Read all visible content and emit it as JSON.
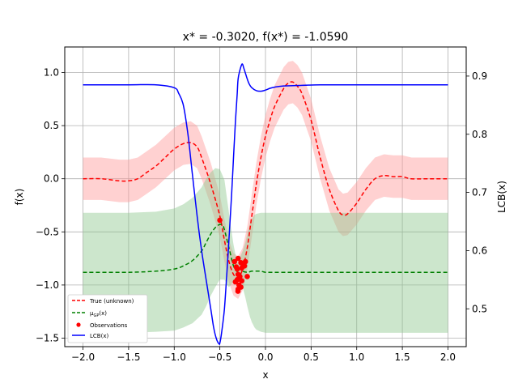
{
  "chart_data": {
    "type": "line",
    "title": "x* = -0.3020, f(x*) = -1.0590",
    "xlabel": "x",
    "ylabel": "f(x)",
    "y2label": "LCB(x)",
    "xlim": [
      -2.2,
      2.2
    ],
    "ylim": [
      -1.58,
      1.24
    ],
    "y2lim": [
      0.435,
      0.95
    ],
    "xticks": [
      "−2.0",
      "−1.5",
      "−1.0",
      "−0.5",
      "0.0",
      "0.5",
      "1.0",
      "1.5",
      "2.0"
    ],
    "yticks": [
      "1.0",
      "0.5",
      "0.0",
      "−0.5",
      "−1.0",
      "−1.5"
    ],
    "y2ticks": [
      "0.9",
      "0.8",
      "0.7",
      "0.6",
      "0.5"
    ],
    "grid": true,
    "legend_position": "lower-left",
    "colors": {
      "true": "#ff0000",
      "true_band": "#ff9999",
      "gp": "#008000",
      "gp_band": "#8fc88f",
      "observations": "#ff0000",
      "lcb": "#0000ff"
    },
    "legend": [
      {
        "label": "True (unknown)",
        "style": "dashed",
        "color": "#ff0000"
      },
      {
        "label": "μ_GP(x)",
        "style": "dashed",
        "color": "#008000"
      },
      {
        "label": "Observations",
        "style": "marker",
        "color": "#ff0000"
      },
      {
        "label": "LCB(x)",
        "style": "solid",
        "color": "#0000ff"
      }
    ],
    "series": [
      {
        "name": "True (unknown)",
        "x": [
          -2.0,
          -1.8,
          -1.6,
          -1.5,
          -1.4,
          -1.3,
          -1.2,
          -1.1,
          -1.0,
          -0.9,
          -0.82,
          -0.75,
          -0.7,
          -0.6,
          -0.5,
          -0.45,
          -0.4,
          -0.35,
          -0.3,
          -0.25,
          -0.2,
          -0.15,
          -0.1,
          -0.05,
          0.0,
          0.05,
          0.1,
          0.2,
          0.25,
          0.3,
          0.35,
          0.4,
          0.5,
          0.6,
          0.7,
          0.8,
          0.85,
          0.9,
          1.0,
          1.1,
          1.2,
          1.3,
          1.4,
          1.5,
          1.6,
          1.8,
          2.0
        ],
        "y": [
          0.0,
          0.0,
          -0.02,
          -0.02,
          0.0,
          0.06,
          0.12,
          0.2,
          0.28,
          0.33,
          0.34,
          0.3,
          0.2,
          -0.05,
          -0.35,
          -0.58,
          -0.78,
          -0.9,
          -0.93,
          -0.85,
          -0.65,
          -0.35,
          -0.05,
          0.2,
          0.4,
          0.55,
          0.68,
          0.85,
          0.9,
          0.91,
          0.87,
          0.8,
          0.55,
          0.2,
          -0.1,
          -0.3,
          -0.34,
          -0.33,
          -0.23,
          -0.1,
          0.0,
          0.03,
          0.02,
          0.02,
          0.0,
          0.0,
          0.0
        ]
      },
      {
        "name": "μ_GP(x)",
        "x": [
          -2.0,
          -1.5,
          -1.2,
          -1.0,
          -0.9,
          -0.8,
          -0.7,
          -0.65,
          -0.6,
          -0.55,
          -0.5,
          -0.47,
          -0.45,
          -0.4,
          -0.35,
          -0.3,
          -0.28,
          -0.25,
          -0.2,
          -0.15,
          -0.1,
          -0.05,
          0.0,
          0.1,
          0.5,
          1.0,
          1.5,
          2.0
        ],
        "y": [
          -0.88,
          -0.88,
          -0.87,
          -0.85,
          -0.82,
          -0.77,
          -0.68,
          -0.6,
          -0.52,
          -0.46,
          -0.43,
          -0.44,
          -0.48,
          -0.65,
          -0.82,
          -0.88,
          -0.84,
          -0.87,
          -0.88,
          -0.87,
          -0.87,
          -0.87,
          -0.88,
          -0.88,
          -0.88,
          -0.88,
          -0.88,
          -0.88
        ]
      },
      {
        "name": "LCB(x)",
        "axis": "right",
        "x": [
          -2.0,
          -1.5,
          -1.2,
          -1.0,
          -0.95,
          -0.9,
          -0.85,
          -0.8,
          -0.75,
          -0.7,
          -0.65,
          -0.6,
          -0.57,
          -0.55,
          -0.53,
          -0.51,
          -0.5,
          -0.48,
          -0.45,
          -0.42,
          -0.4,
          -0.37,
          -0.35,
          -0.33,
          -0.31,
          -0.3,
          -0.28,
          -0.26,
          -0.25,
          -0.24,
          -0.22,
          -0.2,
          -0.18,
          -0.15,
          -0.1,
          -0.05,
          0.0,
          0.05,
          0.1,
          0.2,
          0.4,
          0.6,
          1.0,
          1.5,
          2.0
        ],
        "y": [
          0.885,
          0.885,
          0.885,
          0.88,
          0.87,
          0.85,
          0.8,
          0.73,
          0.66,
          0.6,
          0.55,
          0.5,
          0.47,
          0.455,
          0.445,
          0.44,
          0.441,
          0.46,
          0.5,
          0.57,
          0.62,
          0.7,
          0.76,
          0.82,
          0.87,
          0.895,
          0.91,
          0.92,
          0.92,
          0.915,
          0.905,
          0.895,
          0.887,
          0.88,
          0.875,
          0.874,
          0.876,
          0.879,
          0.881,
          0.883,
          0.884,
          0.885,
          0.885,
          0.885,
          0.885
        ]
      }
    ],
    "bands": [
      {
        "name": "True (unknown) band",
        "x": [
          -2.0,
          -1.8,
          -1.6,
          -1.5,
          -1.4,
          -1.3,
          -1.2,
          -1.1,
          -1.0,
          -0.9,
          -0.82,
          -0.75,
          -0.7,
          -0.6,
          -0.5,
          -0.45,
          -0.4,
          -0.35,
          -0.3,
          -0.25,
          -0.2,
          -0.15,
          -0.1,
          -0.05,
          0.0,
          0.05,
          0.1,
          0.2,
          0.25,
          0.3,
          0.35,
          0.4,
          0.5,
          0.6,
          0.7,
          0.8,
          0.85,
          0.9,
          1.0,
          1.1,
          1.2,
          1.3,
          1.4,
          1.5,
          1.6,
          1.8,
          2.0
        ],
        "lower": [
          -0.2,
          -0.2,
          -0.22,
          -0.22,
          -0.2,
          -0.14,
          -0.08,
          0.0,
          0.08,
          0.13,
          0.14,
          0.1,
          0.0,
          -0.25,
          -0.55,
          -0.78,
          -0.98,
          -1.1,
          -1.13,
          -1.05,
          -0.85,
          -0.55,
          -0.25,
          0.0,
          0.2,
          0.35,
          0.48,
          0.65,
          0.7,
          0.71,
          0.67,
          0.6,
          0.35,
          0.0,
          -0.3,
          -0.5,
          -0.54,
          -0.53,
          -0.43,
          -0.3,
          -0.2,
          -0.17,
          -0.18,
          -0.18,
          -0.2,
          -0.2,
          -0.2
        ],
        "upper": [
          0.2,
          0.2,
          0.18,
          0.18,
          0.2,
          0.26,
          0.32,
          0.4,
          0.48,
          0.53,
          0.54,
          0.5,
          0.4,
          0.15,
          -0.15,
          -0.38,
          -0.58,
          -0.7,
          -0.73,
          -0.65,
          -0.45,
          -0.15,
          0.15,
          0.4,
          0.6,
          0.75,
          0.88,
          1.05,
          1.1,
          1.11,
          1.07,
          1.0,
          0.75,
          0.4,
          0.1,
          -0.1,
          -0.14,
          -0.13,
          -0.03,
          0.1,
          0.2,
          0.23,
          0.22,
          0.22,
          0.2,
          0.2,
          0.2
        ]
      },
      {
        "name": "μ_GP(x) band",
        "x": [
          -2.0,
          -1.5,
          -1.2,
          -1.0,
          -0.9,
          -0.8,
          -0.7,
          -0.65,
          -0.6,
          -0.55,
          -0.5,
          -0.45,
          -0.42,
          -0.4,
          -0.38,
          -0.35,
          -0.32,
          -0.3,
          -0.28,
          -0.25,
          -0.22,
          -0.2,
          -0.17,
          -0.15,
          -0.12,
          -0.1,
          -0.05,
          0.0,
          0.1,
          0.5,
          1.0,
          1.5,
          2.0
        ],
        "lower": [
          -1.45,
          -1.45,
          -1.44,
          -1.43,
          -1.4,
          -1.36,
          -1.28,
          -1.2,
          -1.1,
          -1.02,
          -0.95,
          -0.95,
          -1.0,
          -1.02,
          -1.0,
          -0.96,
          -0.93,
          -0.91,
          -0.94,
          -1.02,
          -1.12,
          -1.2,
          -1.3,
          -1.35,
          -1.4,
          -1.42,
          -1.44,
          -1.45,
          -1.45,
          -1.45,
          -1.45,
          -1.45,
          -1.45
        ],
        "upper": [
          -0.32,
          -0.32,
          -0.31,
          -0.28,
          -0.24,
          -0.18,
          -0.08,
          0.0,
          0.06,
          0.1,
          0.09,
          -0.01,
          -0.2,
          -0.32,
          -0.45,
          -0.62,
          -0.75,
          -0.8,
          -0.74,
          -0.68,
          -0.6,
          -0.52,
          -0.42,
          -0.38,
          -0.34,
          -0.33,
          -0.32,
          -0.32,
          -0.32,
          -0.32,
          -0.32,
          -0.32,
          -0.32
        ]
      }
    ],
    "observations": [
      {
        "x": -0.5,
        "y": -0.39
      },
      {
        "x": -0.3,
        "y": -0.75
      },
      {
        "x": -0.32,
        "y": -0.83
      },
      {
        "x": -0.34,
        "y": -0.78
      },
      {
        "x": -0.27,
        "y": -0.79
      },
      {
        "x": -0.23,
        "y": -0.82
      },
      {
        "x": -0.25,
        "y": -0.8
      },
      {
        "x": -0.26,
        "y": -0.84
      },
      {
        "x": -0.22,
        "y": -0.78
      },
      {
        "x": -0.3,
        "y": -0.9
      },
      {
        "x": -0.28,
        "y": -0.92
      },
      {
        "x": -0.31,
        "y": -0.95
      },
      {
        "x": -0.33,
        "y": -0.97
      },
      {
        "x": -0.29,
        "y": -1.0
      },
      {
        "x": -0.27,
        "y": -1.02
      },
      {
        "x": -0.3,
        "y": -1.04
      },
      {
        "x": -0.302,
        "y": -1.059
      },
      {
        "x": -0.26,
        "y": -0.96
      },
      {
        "x": -0.2,
        "y": -0.92
      },
      {
        "x": -0.31,
        "y": -0.85
      }
    ]
  }
}
